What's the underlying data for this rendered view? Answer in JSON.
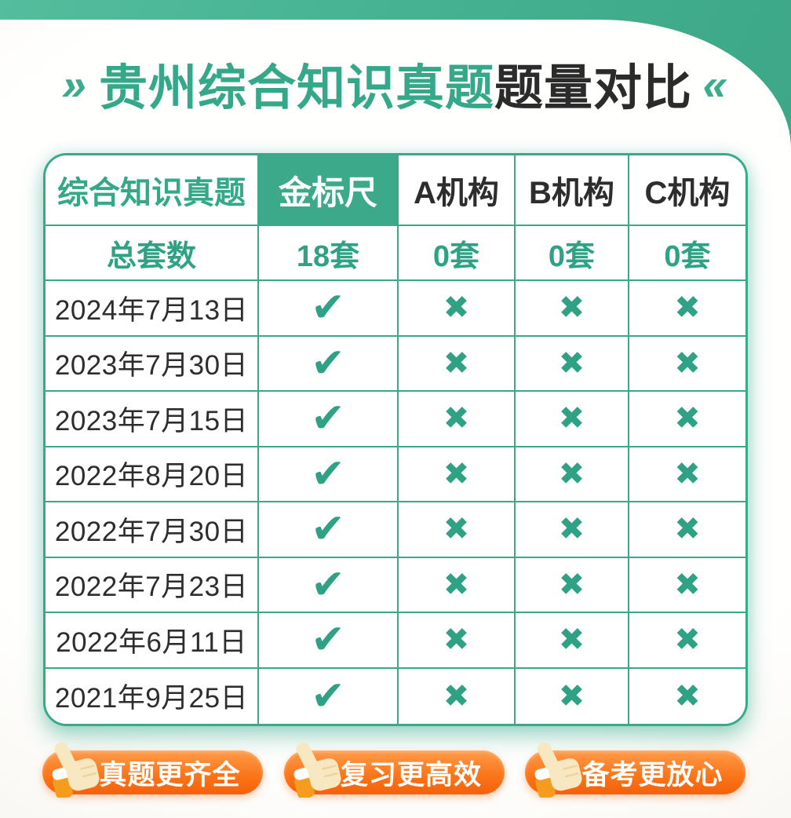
{
  "title": {
    "left_mark": "»",
    "highlight": "贵州综合知识真题",
    "rest": "题量对比",
    "right_mark": "«"
  },
  "chart_data": {
    "type": "table",
    "title": "贵州综合知识真题题量对比",
    "columns": [
      "综合知识真题",
      "金标尺",
      "A机构",
      "B机构",
      "C机构"
    ],
    "summary": {
      "label": "总套数",
      "values": [
        "18套",
        "0套",
        "0套",
        "0套"
      ]
    },
    "rows": [
      {
        "label": "2024年7月13日",
        "marks": [
          "check",
          "cross",
          "cross",
          "cross"
        ]
      },
      {
        "label": "2023年7月30日",
        "marks": [
          "check",
          "cross",
          "cross",
          "cross"
        ]
      },
      {
        "label": "2023年7月15日",
        "marks": [
          "check",
          "cross",
          "cross",
          "cross"
        ]
      },
      {
        "label": "2022年8月20日",
        "marks": [
          "check",
          "cross",
          "cross",
          "cross"
        ]
      },
      {
        "label": "2022年7月30日",
        "marks": [
          "check",
          "cross",
          "cross",
          "cross"
        ]
      },
      {
        "label": "2022年7月23日",
        "marks": [
          "check",
          "cross",
          "cross",
          "cross"
        ]
      },
      {
        "label": "2022年6月11日",
        "marks": [
          "check",
          "cross",
          "cross",
          "cross"
        ]
      },
      {
        "label": "2021年9月25日",
        "marks": [
          "check",
          "cross",
          "cross",
          "cross"
        ]
      }
    ],
    "symbols": {
      "check": "✔",
      "cross": "✖"
    }
  },
  "badges": [
    {
      "icon": "thumbs-up-icon",
      "label": "真题更齐全"
    },
    {
      "icon": "thumbs-up-icon",
      "label": "复习更高效"
    },
    {
      "icon": "thumbs-up-icon",
      "label": "备考更放心"
    }
  ],
  "colors": {
    "green": "#3BA98A",
    "green_text": "#2FA285",
    "dark_text": "#2B2B2B",
    "orange": "#F96A10",
    "cream": "#F3EFE6"
  }
}
